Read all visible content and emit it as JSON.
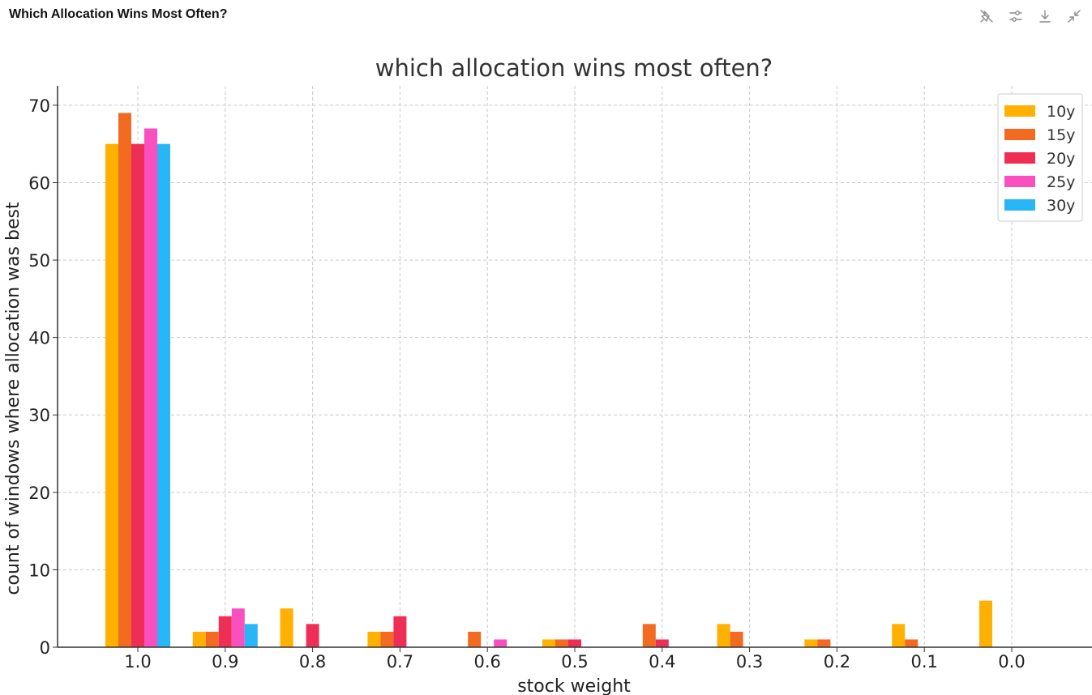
{
  "window": {
    "title": "Which Allocation Wins Most Often?"
  },
  "toolbar": {
    "icons": [
      "unpin-icon",
      "adjust-sliders-icon",
      "download-icon",
      "collapse-icon"
    ]
  },
  "chart_data": {
    "type": "bar",
    "title": "which allocation wins most often?",
    "xlabel": "stock weight",
    "ylabel": "count of windows where allocation was best",
    "categories": [
      "1.0",
      "0.9",
      "0.8",
      "0.7",
      "0.6",
      "0.5",
      "0.4",
      "0.3",
      "0.2",
      "0.1",
      "0.0"
    ],
    "series": [
      {
        "name": "10y",
        "color": "#ffb000",
        "values": [
          65,
          2,
          5,
          2,
          0,
          1,
          0,
          3,
          1,
          3,
          6
        ]
      },
      {
        "name": "15y",
        "color": "#f26b21",
        "values": [
          69,
          2,
          0,
          2,
          2,
          1,
          3,
          2,
          1,
          1,
          0
        ]
      },
      {
        "name": "20y",
        "color": "#ef2e55",
        "values": [
          65,
          4,
          3,
          4,
          0,
          1,
          1,
          0,
          0,
          0,
          0
        ]
      },
      {
        "name": "25y",
        "color": "#f94fbf",
        "values": [
          67,
          5,
          0,
          0,
          1,
          0,
          0,
          0,
          0,
          0,
          0
        ]
      },
      {
        "name": "30y",
        "color": "#29b6f6",
        "values": [
          65,
          3,
          0,
          0,
          0,
          0,
          0,
          0,
          0,
          0,
          0
        ]
      }
    ],
    "ylim": [
      0,
      72.5
    ],
    "yticks": [
      "0",
      "10",
      "20",
      "30",
      "40",
      "50",
      "60",
      "70"
    ],
    "grid": true,
    "legend": "top-right"
  }
}
